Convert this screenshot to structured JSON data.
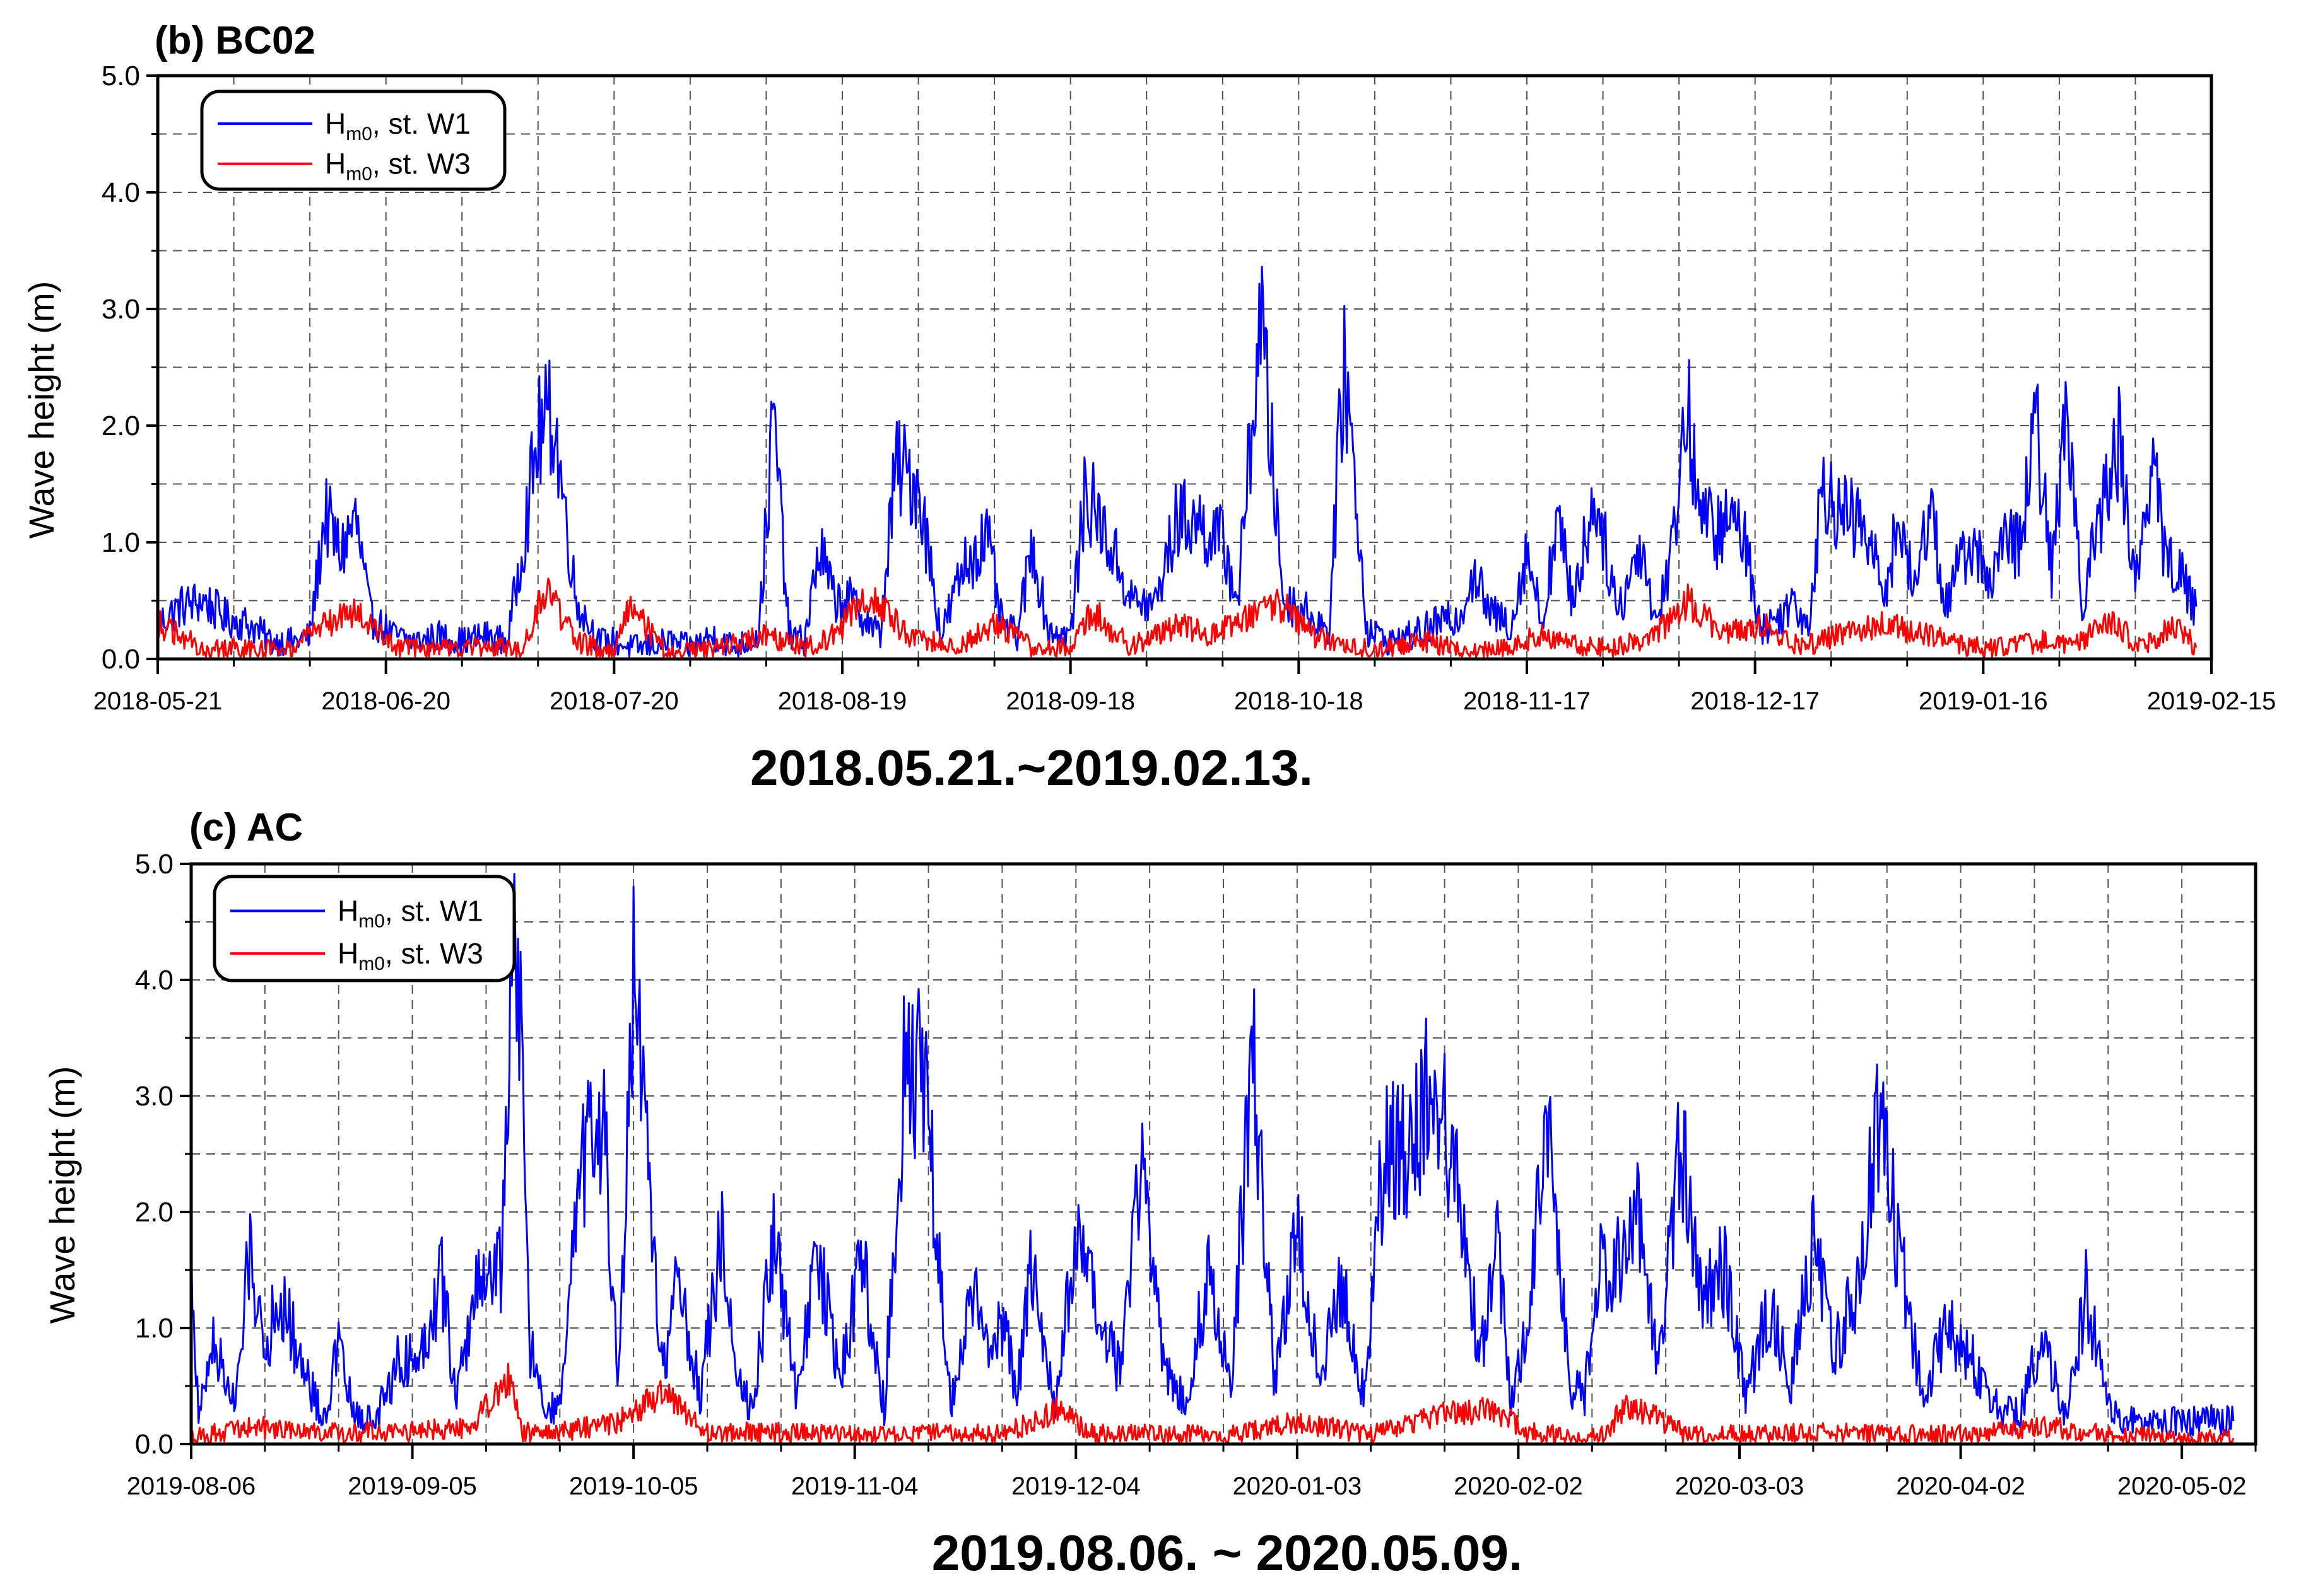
{
  "chart_data": [
    {
      "type": "line",
      "title": "(b) BC02",
      "caption": "2018.05.21.~2019.02.13.",
      "ylabel": "Wave height (m)",
      "ylim": [
        0,
        5
      ],
      "yticks": [
        0,
        1,
        2,
        3,
        4,
        5
      ],
      "ytick_labels": [
        "0.0",
        "1.0",
        "2.0",
        "3.0",
        "4.0",
        "5.0"
      ],
      "xlim": [
        "2018-05-21",
        "2019-02-15"
      ],
      "xtick_labels": [
        "2018-05-21",
        "2018-06-20",
        "2018-07-20",
        "2018-08-19",
        "2018-09-18",
        "2018-10-18",
        "2018-11-17",
        "2018-12-17",
        "2019-01-16",
        "2019-02-15"
      ],
      "data_end": "2019-02-13",
      "grid": true,
      "legend_position": "top-left",
      "series": [
        {
          "name": "H_m0, st. W1",
          "color": "#0000ff",
          "x": [
            "2018-05-21",
            "2018-05-24",
            "2018-05-27",
            "2018-05-30",
            "2018-06-02",
            "2018-06-05",
            "2018-06-08",
            "2018-06-10",
            "2018-06-12",
            "2018-06-14",
            "2018-06-16",
            "2018-06-18",
            "2018-06-21",
            "2018-06-24",
            "2018-06-27",
            "2018-06-30",
            "2018-07-03",
            "2018-07-06",
            "2018-07-08",
            "2018-07-10",
            "2018-07-12",
            "2018-07-15",
            "2018-07-18",
            "2018-07-20",
            "2018-07-22",
            "2018-07-24",
            "2018-07-27",
            "2018-07-30",
            "2018-08-02",
            "2018-08-05",
            "2018-08-08",
            "2018-08-10",
            "2018-08-12",
            "2018-08-14",
            "2018-08-16",
            "2018-08-18",
            "2018-08-20",
            "2018-08-22",
            "2018-08-24",
            "2018-08-26",
            "2018-08-29",
            "2018-09-01",
            "2018-09-04",
            "2018-09-07",
            "2018-09-09",
            "2018-09-11",
            "2018-09-13",
            "2018-09-15",
            "2018-09-18",
            "2018-09-20",
            "2018-09-22",
            "2018-09-24",
            "2018-09-26",
            "2018-09-29",
            "2018-10-02",
            "2018-10-04",
            "2018-10-06",
            "2018-10-08",
            "2018-10-10",
            "2018-10-13",
            "2018-10-16",
            "2018-10-18",
            "2018-10-20",
            "2018-10-22",
            "2018-10-24",
            "2018-10-27",
            "2018-10-30",
            "2018-11-02",
            "2018-11-05",
            "2018-11-08",
            "2018-11-10",
            "2018-11-12",
            "2018-11-15",
            "2018-11-17",
            "2018-11-19",
            "2018-11-21",
            "2018-11-23",
            "2018-11-26",
            "2018-11-29",
            "2018-12-02",
            "2018-12-04",
            "2018-12-06",
            "2018-12-08",
            "2018-12-10",
            "2018-12-12",
            "2018-12-15",
            "2018-12-18",
            "2018-12-20",
            "2018-12-22",
            "2018-12-24",
            "2018-12-26",
            "2018-12-28",
            "2018-12-31",
            "2019-01-03",
            "2019-01-05",
            "2019-01-07",
            "2019-01-09",
            "2019-01-11",
            "2019-01-14",
            "2019-01-17",
            "2019-01-19",
            "2019-01-21",
            "2019-01-23",
            "2019-01-25",
            "2019-01-27",
            "2019-01-29",
            "2019-02-01",
            "2019-02-03",
            "2019-02-05",
            "2019-02-07",
            "2019-02-09",
            "2019-02-11",
            "2019-02-13"
          ],
          "y": [
            0.3,
            0.45,
            0.5,
            0.35,
            0.3,
            0.15,
            0.15,
            0.2,
            1.25,
            0.9,
            1.2,
            0.35,
            0.2,
            0.15,
            0.2,
            0.15,
            0.2,
            0.15,
            1.0,
            1.9,
            2.1,
            0.5,
            0.15,
            0.15,
            0.1,
            0.1,
            0.15,
            0.1,
            0.2,
            0.1,
            0.2,
            2.1,
            0.2,
            0.15,
            0.95,
            0.5,
            0.5,
            0.35,
            0.2,
            1.65,
            1.5,
            0.2,
            0.8,
            1.05,
            0.3,
            0.2,
            1.0,
            0.25,
            0.2,
            1.45,
            1.15,
            0.85,
            0.5,
            0.45,
            1.2,
            1.2,
            1.1,
            1.0,
            0.5,
            2.95,
            0.5,
            0.45,
            0.35,
            0.25,
            2.6,
            0.25,
            0.15,
            0.2,
            0.3,
            0.35,
            0.75,
            0.4,
            0.3,
            0.95,
            0.3,
            1.2,
            0.5,
            1.4,
            0.4,
            1.0,
            0.3,
            0.9,
            2.2,
            1.2,
            1.1,
            1.2,
            0.25,
            0.35,
            0.5,
            0.3,
            1.55,
            1.25,
            1.15,
            0.6,
            1.2,
            0.55,
            1.4,
            0.45,
            1.0,
            0.7,
            1.0,
            1.0,
            2.05,
            0.7,
            2.25,
            0.5,
            1.4,
            1.9,
            0.6,
            1.7,
            0.9,
            0.7,
            0.45
          ],
          "x_w3": [
            "2018-05-21",
            "2018-05-27",
            "2018-06-02",
            "2018-06-08",
            "2018-06-12",
            "2018-06-16",
            "2018-06-21",
            "2018-06-27",
            "2018-07-03",
            "2018-07-08",
            "2018-07-11",
            "2018-07-15",
            "2018-07-20",
            "2018-07-22",
            "2018-07-27",
            "2018-08-02",
            "2018-08-09",
            "2018-08-14",
            "2018-08-18",
            "2018-08-22",
            "2018-08-28",
            "2018-09-03",
            "2018-09-08",
            "2018-09-13",
            "2018-09-18",
            "2018-09-21",
            "2018-09-26",
            "2018-10-02",
            "2018-10-06",
            "2018-10-10",
            "2018-10-15",
            "2018-10-20",
            "2018-10-25",
            "2018-10-30",
            "2018-11-04",
            "2018-11-09",
            "2018-11-14",
            "2018-11-19",
            "2018-11-24",
            "2018-11-29",
            "2018-12-04",
            "2018-12-08",
            "2018-12-13",
            "2018-12-18",
            "2018-12-23",
            "2018-12-28",
            "2019-01-03",
            "2019-01-09",
            "2019-01-14",
            "2019-01-19",
            "2019-01-24",
            "2019-01-28",
            "2019-02-01",
            "2019-02-06",
            "2019-02-10",
            "2019-02-13"
          ],
          "y_w3": [
            0.3,
            0.1,
            0.08,
            0.1,
            0.3,
            0.4,
            0.1,
            0.08,
            0.1,
            0.1,
            0.6,
            0.15,
            0.05,
            0.45,
            0.05,
            0.08,
            0.2,
            0.1,
            0.2,
            0.55,
            0.2,
            0.1,
            0.3,
            0.1,
            0.1,
            0.4,
            0.1,
            0.3,
            0.2,
            0.3,
            0.5,
            0.2,
            0.1,
            0.1,
            0.15,
            0.05,
            0.1,
            0.2,
            0.1,
            0.1,
            0.2,
            0.5,
            0.2,
            0.3,
            0.1,
            0.2,
            0.3,
            0.2,
            0.1,
            0.1,
            0.15,
            0.1,
            0.35,
            0.1,
            0.3,
            0.1
          ]
        },
        {
          "name": "H_m0, st. W3",
          "color": "#ff0000"
        }
      ],
      "legend": [
        {
          "main": "H",
          "sub": "m0",
          "rest": ", st. W1",
          "color": "#0000ff"
        },
        {
          "main": "H",
          "sub": "m0",
          "rest": ", st. W3",
          "color": "#ff0000"
        }
      ]
    },
    {
      "type": "line",
      "title": "(c) AC",
      "caption": "2019.08.06. ~ 2020.05.09.",
      "ylabel": "Wave height (m)",
      "ylim": [
        0,
        5
      ],
      "yticks": [
        0,
        1,
        2,
        3,
        4,
        5
      ],
      "ytick_labels": [
        "0.0",
        "1.0",
        "2.0",
        "3.0",
        "4.0",
        "5.0"
      ],
      "xlim": [
        "2019-08-06",
        "2020-05-12"
      ],
      "xtick_labels": [
        "2019-08-06",
        "2019-09-05",
        "2019-10-05",
        "2019-11-04",
        "2019-12-04",
        "2020-01-03",
        "2020-02-02",
        "2020-03-03",
        "2020-04-02",
        "2020-05-02"
      ],
      "data_end": "2020-05-09",
      "grid": true,
      "legend_position": "top-left",
      "series": [
        {
          "name": "H_m0, st. W1",
          "color": "#0000ff",
          "x": [
            "2019-08-06",
            "2019-08-07",
            "2019-08-09",
            "2019-08-12",
            "2019-08-14",
            "2019-08-16",
            "2019-08-18",
            "2019-08-21",
            "2019-08-24",
            "2019-08-26",
            "2019-08-28",
            "2019-08-31",
            "2019-09-03",
            "2019-09-06",
            "2019-09-09",
            "2019-09-11",
            "2019-09-14",
            "2019-09-17",
            "2019-09-19",
            "2019-09-21",
            "2019-09-23",
            "2019-09-25",
            "2019-09-28",
            "2019-10-01",
            "2019-10-03",
            "2019-10-05",
            "2019-10-07",
            "2019-10-09",
            "2019-10-11",
            "2019-10-14",
            "2019-10-17",
            "2019-10-19",
            "2019-10-21",
            "2019-10-24",
            "2019-10-27",
            "2019-10-30",
            "2019-11-02",
            "2019-11-05",
            "2019-11-08",
            "2019-11-11",
            "2019-11-14",
            "2019-11-17",
            "2019-11-20",
            "2019-11-22",
            "2019-11-24",
            "2019-11-26",
            "2019-11-28",
            "2019-12-01",
            "2019-12-04",
            "2019-12-07",
            "2019-12-10",
            "2019-12-13",
            "2019-12-16",
            "2019-12-19",
            "2019-12-22",
            "2019-12-25",
            "2019-12-28",
            "2019-12-31",
            "2020-01-03",
            "2020-01-06",
            "2020-01-09",
            "2020-01-12",
            "2020-01-15",
            "2020-01-18",
            "2020-01-21",
            "2020-01-24",
            "2020-01-26",
            "2020-01-28",
            "2020-01-30",
            "2020-02-01",
            "2020-02-03",
            "2020-02-06",
            "2020-02-09",
            "2020-02-11",
            "2020-02-13",
            "2020-02-15",
            "2020-02-18",
            "2020-02-21",
            "2020-02-24",
            "2020-02-27",
            "2020-03-01",
            "2020-03-04",
            "2020-03-07",
            "2020-03-10",
            "2020-03-13",
            "2020-03-16",
            "2020-03-19",
            "2020-03-22",
            "2020-03-25",
            "2020-03-28",
            "2020-03-31",
            "2020-04-03",
            "2020-04-05",
            "2020-04-07",
            "2020-04-10",
            "2020-04-13",
            "2020-04-16",
            "2020-04-19",
            "2020-04-22",
            "2020-04-25",
            "2020-04-28",
            "2020-05-01",
            "2020-05-04",
            "2020-05-06",
            "2020-05-08",
            "2020-05-09"
          ],
          "y": [
            1.65,
            0.2,
            0.9,
            0.3,
            1.7,
            0.8,
            1.3,
            0.7,
            0.2,
            0.85,
            0.25,
            0.2,
            0.7,
            0.75,
            1.45,
            0.4,
            1.45,
            1.5,
            4.85,
            0.8,
            0.3,
            0.3,
            2.4,
            2.7,
            0.5,
            3.9,
            2.3,
            0.6,
            1.5,
            0.4,
            1.85,
            0.6,
            0.3,
            1.75,
            0.5,
            1.6,
            0.6,
            1.6,
            0.3,
            3.5,
            2.85,
            0.3,
            1.3,
            0.8,
            1.1,
            0.4,
            1.55,
            0.3,
            1.75,
            1.1,
            0.6,
            2.6,
            0.6,
            0.4,
            1.5,
            0.5,
            3.35,
            0.5,
            1.85,
            0.6,
            1.4,
            0.4,
            2.7,
            2.4,
            3.05,
            2.5,
            1.5,
            0.8,
            1.85,
            0.3,
            1.0,
            2.9,
            0.5,
            0.4,
            1.6,
            1.45,
            2.1,
            0.6,
            2.7,
            1.3,
            1.5,
            0.4,
            1.2,
            0.5,
            1.8,
            0.8,
            1.4,
            2.8,
            1.5,
            0.4,
            1.0,
            0.8,
            0.5,
            0.3,
            0.25,
            1.0,
            0.2,
            1.3,
            0.3,
            0.2,
            0.2,
            0.2,
            0.2,
            0.2,
            0.2,
            0.2
          ],
          "x_w3": [
            "2019-08-06",
            "2019-08-14",
            "2019-08-24",
            "2019-09-03",
            "2019-09-13",
            "2019-09-18",
            "2019-09-20",
            "2019-09-25",
            "2019-10-03",
            "2019-10-09",
            "2019-10-15",
            "2019-10-25",
            "2019-11-04",
            "2019-11-14",
            "2019-11-24",
            "2019-12-02",
            "2019-12-06",
            "2019-12-16",
            "2019-12-26",
            "2020-01-03",
            "2020-01-13",
            "2020-01-23",
            "2020-01-30",
            "2020-02-03",
            "2020-02-13",
            "2020-02-17",
            "2020-02-25",
            "2020-03-04",
            "2020-03-14",
            "2020-03-24",
            "2020-04-03",
            "2020-04-13",
            "2020-04-23",
            "2020-05-03",
            "2020-05-09"
          ],
          "y_w3": [
            0.05,
            0.15,
            0.1,
            0.1,
            0.15,
            0.6,
            0.1,
            0.1,
            0.2,
            0.45,
            0.1,
            0.1,
            0.08,
            0.1,
            0.08,
            0.3,
            0.1,
            0.08,
            0.08,
            0.2,
            0.08,
            0.25,
            0.3,
            0.1,
            0.05,
            0.35,
            0.08,
            0.08,
            0.1,
            0.08,
            0.08,
            0.15,
            0.08,
            0.05,
            0.05
          ]
        },
        {
          "name": "H_m0, st. W3",
          "color": "#ff0000"
        }
      ],
      "legend": [
        {
          "main": "H",
          "sub": "m0",
          "rest": ", st. W1",
          "color": "#0000ff"
        },
        {
          "main": "H",
          "sub": "m0",
          "rest": ", st. W3",
          "color": "#ff0000"
        }
      ]
    }
  ]
}
